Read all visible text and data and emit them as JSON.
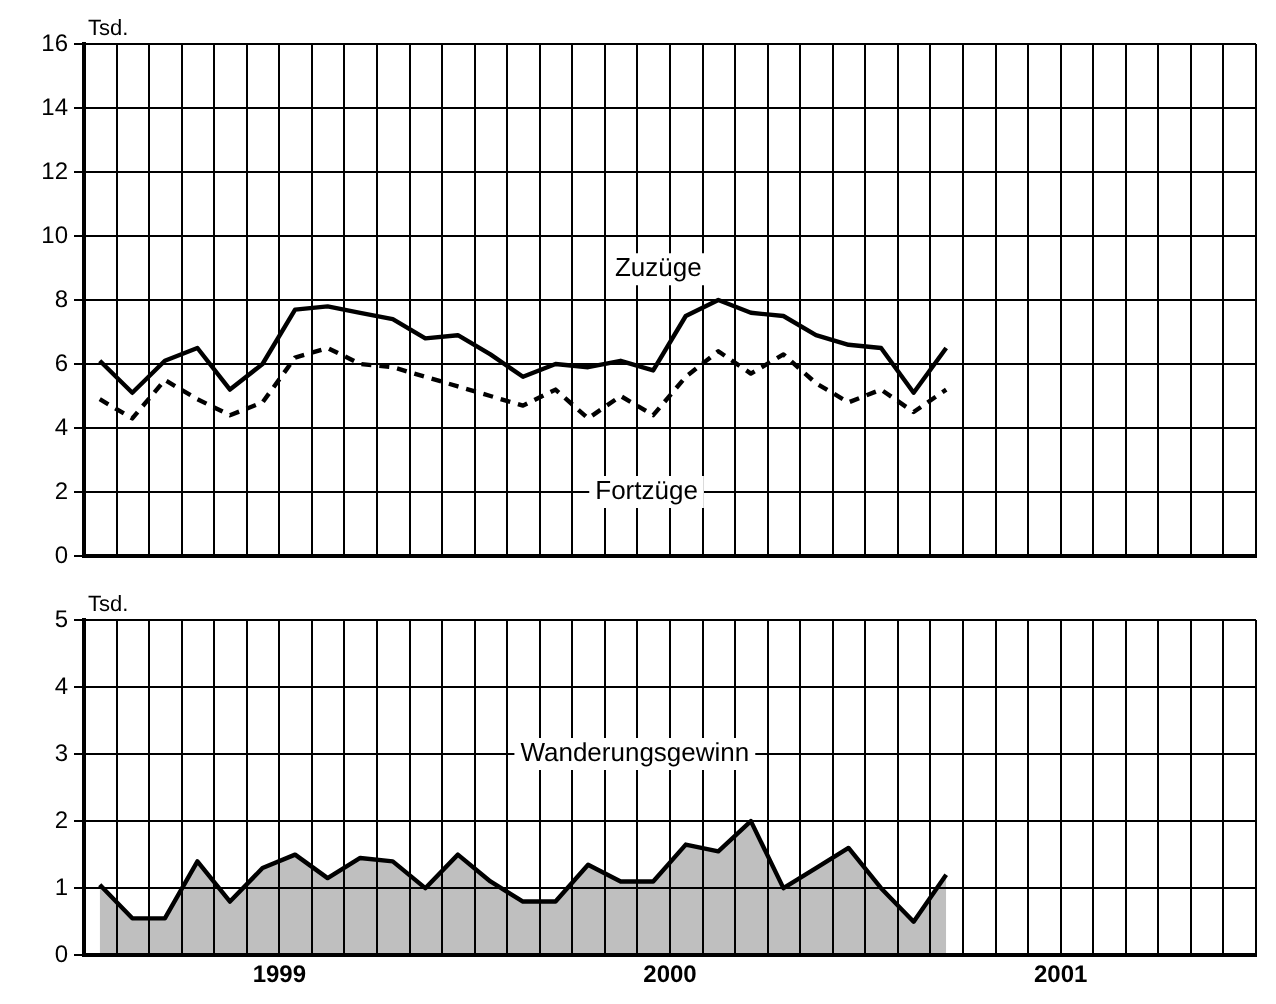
{
  "chart_data": [
    {
      "type": "line",
      "ylabel": "Tsd.",
      "x": [
        "1999-01-16",
        "1999-02-16",
        "1999-03-16",
        "1999-04-16",
        "1999-05-16",
        "1999-06-16",
        "1999-07-16",
        "1999-08-16",
        "1999-09-16",
        "1999-10-16",
        "1999-11-16",
        "1999-12-16",
        "2000-01-16",
        "2000-02-16",
        "2000-03-16",
        "2000-04-16",
        "2000-05-16",
        "2000-06-16",
        "2000-07-16",
        "2000-08-16",
        "2000-09-16",
        "2000-10-16",
        "2000-11-16",
        "2000-12-16",
        "2001-01-16",
        "2001-02-16",
        "2001-03-16"
      ],
      "series": [
        {
          "name": "Zuzüge",
          "color": "#000000",
          "line_style": "solid",
          "values": [
            6.1,
            5.1,
            6.1,
            6.5,
            5.2,
            6.0,
            7.7,
            7.8,
            7.6,
            7.4,
            6.8,
            6.9,
            6.3,
            5.6,
            6.0,
            5.9,
            6.1,
            5.8,
            7.5,
            8.0,
            7.6,
            7.5,
            6.9,
            6.6,
            6.5,
            5.1,
            6.5
          ]
        },
        {
          "name": "Fortzüge",
          "color": "#000000",
          "line_style": "dashed",
          "values": [
            4.9,
            4.3,
            5.5,
            4.9,
            4.4,
            4.8,
            6.2,
            6.5,
            6.0,
            5.9,
            5.6,
            5.3,
            5.0,
            4.7,
            5.2,
            4.3,
            5.0,
            4.4,
            5.6,
            6.4,
            5.7,
            6.3,
            5.4,
            4.8,
            5.2,
            4.5,
            5.2
          ]
        }
      ],
      "xlim": [
        "1999-01-01",
        "2002-01-01"
      ],
      "xticks": [
        {
          "value": "1999-01-01",
          "label": null
        },
        {
          "value": "1999-02-01",
          "label": null
        },
        {
          "value": "1999-03-01",
          "label": null
        },
        {
          "value": "1999-04-01",
          "label": null
        },
        {
          "value": "1999-05-01",
          "label": null
        },
        {
          "value": "1999-06-01",
          "label": null
        },
        {
          "value": "1999-07-01",
          "label": null
        },
        {
          "value": "1999-08-01",
          "label": null
        },
        {
          "value": "1999-09-01",
          "label": null
        },
        {
          "value": "1999-10-01",
          "label": null
        },
        {
          "value": "1999-11-01",
          "label": null
        },
        {
          "value": "1999-12-01",
          "label": null
        },
        {
          "value": "2000-01-01",
          "label": null
        },
        {
          "value": "2000-02-01",
          "label": null
        },
        {
          "value": "2000-03-01",
          "label": null
        },
        {
          "value": "2000-04-01",
          "label": null
        },
        {
          "value": "2000-05-01",
          "label": null
        },
        {
          "value": "2000-06-01",
          "label": null
        },
        {
          "value": "2000-07-01",
          "label": null
        },
        {
          "value": "2000-08-01",
          "label": null
        },
        {
          "value": "2000-09-01",
          "label": null
        },
        {
          "value": "2000-10-01",
          "label": null
        },
        {
          "value": "2000-11-01",
          "label": null
        },
        {
          "value": "2000-12-01",
          "label": null
        },
        {
          "value": "2001-01-01",
          "label": null
        },
        {
          "value": "2001-02-01",
          "label": null
        },
        {
          "value": "2001-03-01",
          "label": null
        },
        {
          "value": "2001-04-01",
          "label": null
        },
        {
          "value": "2001-05-01",
          "label": null
        },
        {
          "value": "2001-06-01",
          "label": null
        },
        {
          "value": "2001-07-01",
          "label": null
        },
        {
          "value": "2001-08-01",
          "label": null
        },
        {
          "value": "2001-09-01",
          "label": null
        },
        {
          "value": "2001-10-01",
          "label": null
        },
        {
          "value": "2001-11-01",
          "label": null
        },
        {
          "value": "2001-12-01",
          "label": null
        },
        {
          "value": "2002-01-01",
          "label": null
        }
      ],
      "ylim": [
        0,
        16
      ],
      "yticks": [
        0,
        2,
        4,
        6,
        8,
        10,
        12,
        14,
        16
      ],
      "grid": true,
      "legend": false,
      "marker": "none",
      "tick_labels": "y"
    },
    {
      "type": "area",
      "ylabel": "Tsd.",
      "x": [
        "1999-01-16",
        "1999-02-16",
        "1999-03-16",
        "1999-04-16",
        "1999-05-16",
        "1999-06-16",
        "1999-07-16",
        "1999-08-16",
        "1999-09-16",
        "1999-10-16",
        "1999-11-16",
        "1999-12-16",
        "2000-01-16",
        "2000-02-16",
        "2000-03-16",
        "2000-04-16",
        "2000-05-16",
        "2000-06-16",
        "2000-07-16",
        "2000-08-16",
        "2000-09-16",
        "2000-10-16",
        "2000-11-16",
        "2000-12-16",
        "2001-01-16",
        "2001-02-16",
        "2001-03-16"
      ],
      "series": [
        {
          "name": "Wanderungsgewinn",
          "color": "#000000",
          "values": [
            1.05,
            0.55,
            0.55,
            1.4,
            0.8,
            1.3,
            1.5,
            1.15,
            1.45,
            1.4,
            1.0,
            1.5,
            1.1,
            0.8,
            0.8,
            1.35,
            1.1,
            1.1,
            1.65,
            1.55,
            2.0,
            1.0,
            1.3,
            1.6,
            1.0,
            0.5,
            1.2
          ]
        }
      ],
      "xlim": [
        "1999-01-01",
        "2002-01-01"
      ],
      "xticks": [
        {
          "value": "1999-01-01",
          "label": null
        },
        {
          "value": "1999-02-01",
          "label": null
        },
        {
          "value": "1999-03-01",
          "label": null
        },
        {
          "value": "1999-04-01",
          "label": null
        },
        {
          "value": "1999-05-01",
          "label": null
        },
        {
          "value": "1999-06-01",
          "label": null
        },
        {
          "value": "1999-07-01",
          "label": "1999"
        },
        {
          "value": "1999-08-01",
          "label": null
        },
        {
          "value": "1999-09-01",
          "label": null
        },
        {
          "value": "1999-10-01",
          "label": null
        },
        {
          "value": "1999-11-01",
          "label": null
        },
        {
          "value": "1999-12-01",
          "label": null
        },
        {
          "value": "2000-01-01",
          "label": null
        },
        {
          "value": "2000-02-01",
          "label": null
        },
        {
          "value": "2000-03-01",
          "label": null
        },
        {
          "value": "2000-04-01",
          "label": null
        },
        {
          "value": "2000-05-01",
          "label": null
        },
        {
          "value": "2000-06-01",
          "label": null
        },
        {
          "value": "2000-07-01",
          "label": "2000"
        },
        {
          "value": "2000-08-01",
          "label": null
        },
        {
          "value": "2000-09-01",
          "label": null
        },
        {
          "value": "2000-10-01",
          "label": null
        },
        {
          "value": "2000-11-01",
          "label": null
        },
        {
          "value": "2000-12-01",
          "label": null
        },
        {
          "value": "2001-01-01",
          "label": null
        },
        {
          "value": "2001-02-01",
          "label": null
        },
        {
          "value": "2001-03-01",
          "label": null
        },
        {
          "value": "2001-04-01",
          "label": null
        },
        {
          "value": "2001-05-01",
          "label": null
        },
        {
          "value": "2001-06-01",
          "label": null
        },
        {
          "value": "2001-07-01",
          "label": "2001"
        },
        {
          "value": "2001-08-01",
          "label": null
        },
        {
          "value": "2001-09-01",
          "label": null
        },
        {
          "value": "2001-10-01",
          "label": null
        },
        {
          "value": "2001-11-01",
          "label": null
        },
        {
          "value": "2001-12-01",
          "label": null
        },
        {
          "value": "2002-01-01",
          "label": null
        }
      ],
      "ylim": [
        0,
        5
      ],
      "yticks": [
        0,
        1,
        2,
        3,
        4,
        5
      ],
      "grid": true,
      "legend": false,
      "marker": "none"
    }
  ]
}
